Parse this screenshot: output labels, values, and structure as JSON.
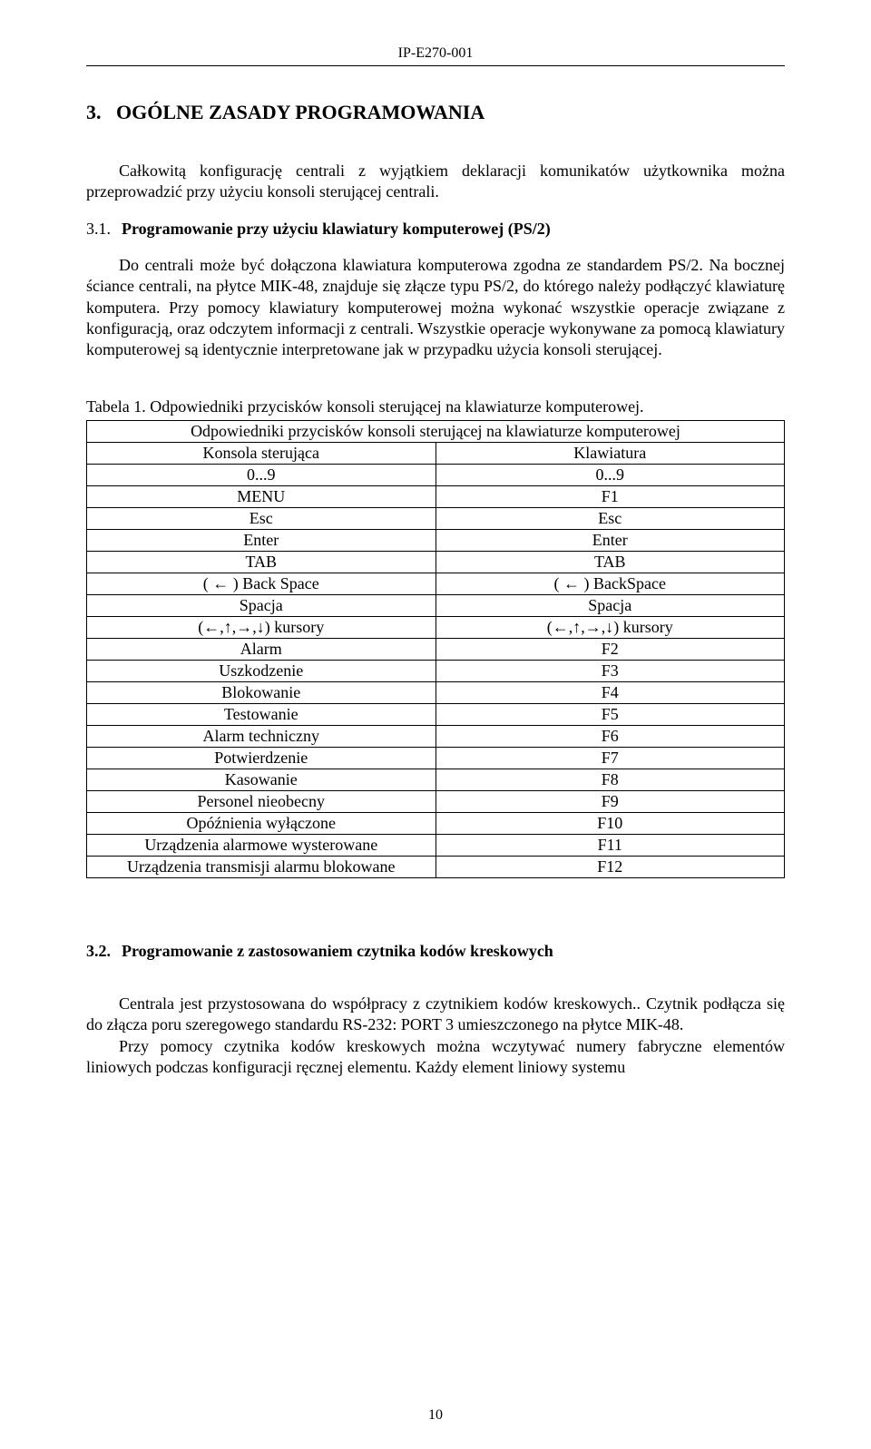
{
  "header": {
    "doc_code": "IP-E270-001"
  },
  "section": {
    "number": "3.",
    "title": "OGÓLNE ZASADY PROGRAMOWANIA"
  },
  "intro_paragraph": "Całkowitą konfigurację centrali z wyjątkiem deklaracji komunikatów użytkownika można przeprowadzić przy użyciu konsoli sterującej centrali.",
  "sub31": {
    "number": "3.1.",
    "title": "Programowanie przy użyciu klawiatury komputerowej (PS/2)",
    "p1": "Do centrali może być dołączona klawiatura komputerowa zgodna ze standardem PS/2. Na bocznej ściance centrali, na płytce MIK-48, znajduje się złącze typu PS/2, do którego należy podłączyć klawiaturę komputera. Przy pomocy klawiatury komputerowej można wykonać wszystkie operacje związane z konfiguracją, oraz odczytem informacji z centrali. Wszystkie operacje wykonywane za pomocą klawiatury komputerowej są identycznie interpretowane jak w przypadku użycia konsoli sterującej."
  },
  "table1": {
    "caption": "Tabela 1. Odpowiedniki przycisków konsoli sterującej na klawiaturze komputerowej.",
    "header_full": "Odpowiedniki przycisków konsoli sterującej na klawiaturze komputerowej",
    "col1_header": "Konsola sterująca",
    "col2_header": "Klawiatura",
    "rows": [
      {
        "c1": "0...9",
        "c2": "0...9"
      },
      {
        "c1": "MENU",
        "c2": "F1"
      },
      {
        "c1": "Esc",
        "c2": "Esc"
      },
      {
        "c1": "Enter",
        "c2": "Enter"
      },
      {
        "c1": "TAB",
        "c2": "TAB"
      },
      {
        "c1": "( ← )  Back Space",
        "c2": "( ← ) BackSpace"
      },
      {
        "c1": "Spacja",
        "c2": "Spacja"
      },
      {
        "c1": "(←,↑,→,↓) kursory",
        "c2": "(←,↑,→,↓) kursory"
      },
      {
        "c1": "Alarm",
        "c2": "F2"
      },
      {
        "c1": "Uszkodzenie",
        "c2": "F3"
      },
      {
        "c1": "Blokowanie",
        "c2": "F4"
      },
      {
        "c1": "Testowanie",
        "c2": "F5"
      },
      {
        "c1": "Alarm techniczny",
        "c2": "F6"
      },
      {
        "c1": "Potwierdzenie",
        "c2": "F7"
      },
      {
        "c1": "Kasowanie",
        "c2": "F8"
      },
      {
        "c1": "Personel nieobecny",
        "c2": "F9"
      },
      {
        "c1": "Opóźnienia wyłączone",
        "c2": "F10"
      },
      {
        "c1": "Urządzenia alarmowe wysterowane",
        "c2": "F11"
      },
      {
        "c1": "Urządzenia transmisji alarmu blokowane",
        "c2": "F12"
      }
    ]
  },
  "sub32": {
    "number": "3.2.",
    "title": "Programowanie z zastosowaniem czytnika kodów kreskowych",
    "p1": "Centrala jest przystosowana do współpracy z czytnikiem kodów kreskowych.. Czytnik podłącza się do złącza poru szeregowego standardu RS-232: PORT 3 umieszczonego na płytce MIK-48.",
    "p2": "Przy pomocy czytnika kodów kreskowych można wczytywać numery fabryczne elementów liniowych podczas konfiguracji ręcznej elementu. Każdy element liniowy systemu"
  },
  "footer": {
    "page_number": "10"
  }
}
